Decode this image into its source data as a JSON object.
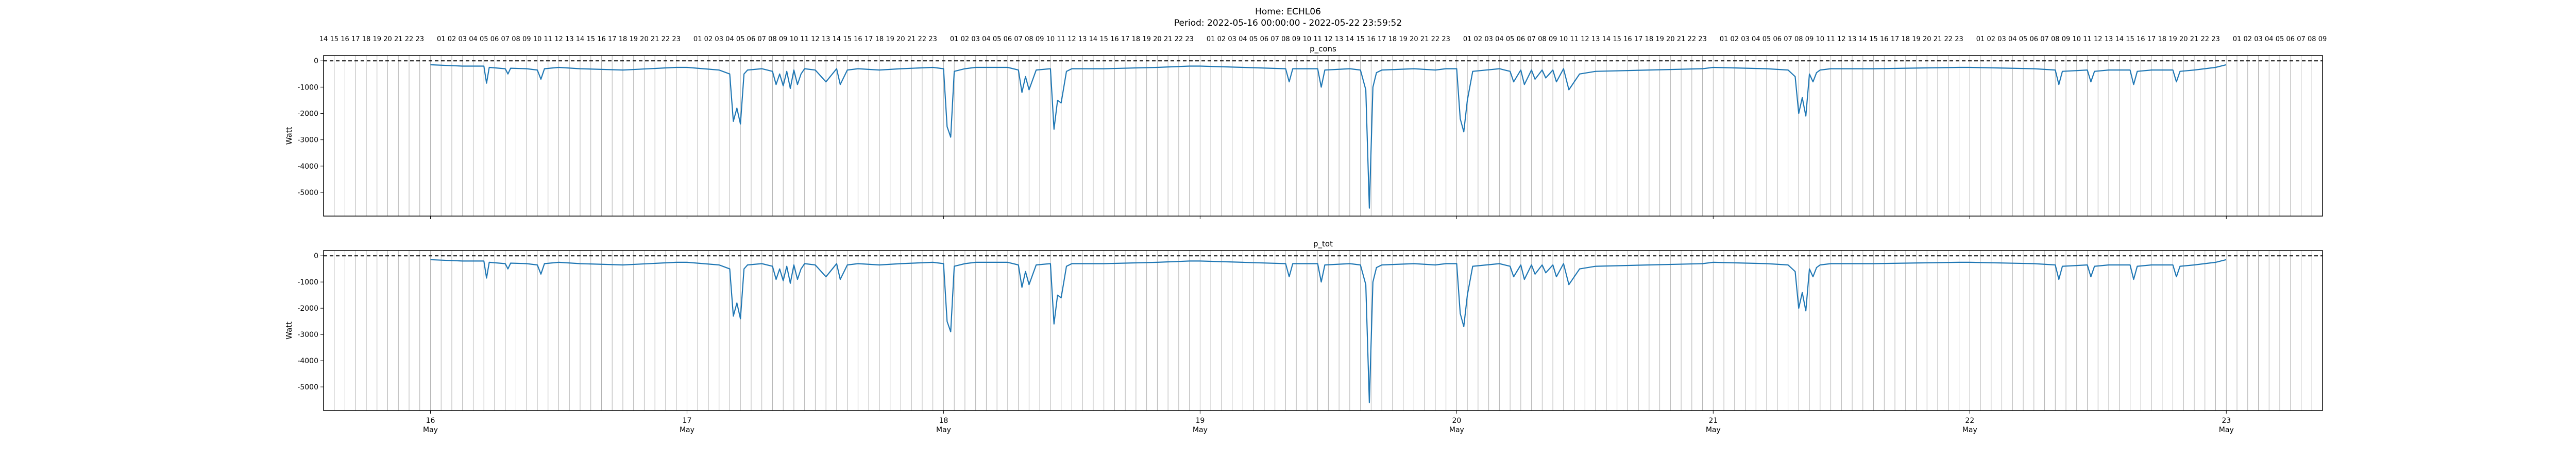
{
  "figure": {
    "title_line1": "Home: ECHL06",
    "title_line2": "Period: 2022-05-16 00:00:00 - 2022-05-22 23:59:52"
  },
  "axes": {
    "x_range": [
      "2022-05-15T14:00",
      "2022-05-23T09:00"
    ],
    "y_range": [
      -5900,
      200
    ],
    "yticks": [
      0,
      -1000,
      -2000,
      -3000,
      -4000,
      -5000
    ],
    "date_labels": [
      "16",
      "17",
      "18",
      "19",
      "20",
      "21",
      "22",
      "23"
    ],
    "month_label": "May",
    "hour_grid": "every hour, vertical grey lines",
    "zero_line": "dashed black at y=0"
  },
  "colors": {
    "line": "#1f77b4",
    "grid": "#b0b0b0",
    "zero": "#000000"
  },
  "chart_data": [
    {
      "type": "line",
      "title": "p_cons",
      "ylabel": "Watt",
      "grid": true,
      "series": [
        {
          "x": [
            "2022-05-16T00:00",
            "2022-05-16T03:00",
            "2022-05-16T05:00",
            "2022-05-16T05:15",
            "2022-05-16T05:30",
            "2022-05-16T07:00",
            "2022-05-16T07:15",
            "2022-05-16T07:30",
            "2022-05-16T09:00",
            "2022-05-16T10:00",
            "2022-05-16T10:20",
            "2022-05-16T10:40",
            "2022-05-16T12:00",
            "2022-05-16T14:00",
            "2022-05-16T18:00",
            "2022-05-16T23:00",
            "2022-05-17T00:00",
            "2022-05-17T03:00",
            "2022-05-17T04:00",
            "2022-05-17T04:20",
            "2022-05-17T04:40",
            "2022-05-17T05:00",
            "2022-05-17T05:20",
            "2022-05-17T05:40",
            "2022-05-17T07:00",
            "2022-05-17T08:00",
            "2022-05-17T08:20",
            "2022-05-17T08:40",
            "2022-05-17T09:00",
            "2022-05-17T09:20",
            "2022-05-17T09:40",
            "2022-05-17T10:00",
            "2022-05-17T10:20",
            "2022-05-17T10:40",
            "2022-05-17T11:00",
            "2022-05-17T12:00",
            "2022-05-17T13:00",
            "2022-05-17T14:00",
            "2022-05-17T14:20",
            "2022-05-17T15:00",
            "2022-05-17T16:00",
            "2022-05-17T18:00",
            "2022-05-17T20:00",
            "2022-05-17T23:00",
            "2022-05-18T00:00",
            "2022-05-18T00:20",
            "2022-05-18T00:40",
            "2022-05-18T01:00",
            "2022-05-18T02:00",
            "2022-05-18T03:00",
            "2022-05-18T06:00",
            "2022-05-18T07:00",
            "2022-05-18T07:20",
            "2022-05-18T07:40",
            "2022-05-18T08:00",
            "2022-05-18T08:40",
            "2022-05-18T10:00",
            "2022-05-18T10:20",
            "2022-05-18T10:40",
            "2022-05-18T11:00",
            "2022-05-18T11:30",
            "2022-05-18T12:00",
            "2022-05-18T15:00",
            "2022-05-18T20:00",
            "2022-05-18T23:00",
            "2022-05-19T00:00",
            "2022-05-19T04:00",
            "2022-05-19T08:00",
            "2022-05-19T08:20",
            "2022-05-19T08:40",
            "2022-05-19T11:00",
            "2022-05-19T11:20",
            "2022-05-19T11:40",
            "2022-05-19T14:00",
            "2022-05-19T15:00",
            "2022-05-19T15:30",
            "2022-05-19T15:50",
            "2022-05-19T16:10",
            "2022-05-19T16:30",
            "2022-05-19T17:00",
            "2022-05-19T20:00",
            "2022-05-19T22:00",
            "2022-05-19T23:00",
            "2022-05-20T00:00",
            "2022-05-20T00:20",
            "2022-05-20T00:40",
            "2022-05-20T01:00",
            "2022-05-20T01:30",
            "2022-05-20T04:00",
            "2022-05-20T05:00",
            "2022-05-20T05:20",
            "2022-05-20T06:00",
            "2022-05-20T06:20",
            "2022-05-20T07:00",
            "2022-05-20T07:20",
            "2022-05-20T08:00",
            "2022-05-20T08:20",
            "2022-05-20T09:00",
            "2022-05-20T09:20",
            "2022-05-20T10:00",
            "2022-05-20T10:30",
            "2022-05-20T11:30",
            "2022-05-20T13:00",
            "2022-05-20T18:00",
            "2022-05-20T23:00",
            "2022-05-21T00:00",
            "2022-05-21T05:00",
            "2022-05-21T07:00",
            "2022-05-21T07:40",
            "2022-05-21T08:00",
            "2022-05-21T08:20",
            "2022-05-21T08:40",
            "2022-05-21T09:00",
            "2022-05-21T09:20",
            "2022-05-21T09:40",
            "2022-05-21T10:00",
            "2022-05-21T11:00",
            "2022-05-21T15:00",
            "2022-05-21T23:00",
            "2022-05-22T00:00",
            "2022-05-22T06:00",
            "2022-05-22T08:00",
            "2022-05-22T08:20",
            "2022-05-22T08:40",
            "2022-05-22T11:00",
            "2022-05-22T11:20",
            "2022-05-22T11:40",
            "2022-05-22T13:00",
            "2022-05-22T15:00",
            "2022-05-22T15:20",
            "2022-05-22T15:40",
            "2022-05-22T17:00",
            "2022-05-22T19:00",
            "2022-05-22T19:20",
            "2022-05-22T19:40",
            "2022-05-22T21:00",
            "2022-05-22T23:00",
            "2022-05-22T23:59"
          ],
          "y": [
            -150,
            -200,
            -200,
            -850,
            -250,
            -300,
            -500,
            -280,
            -300,
            -350,
            -700,
            -300,
            -250,
            -300,
            -350,
            -250,
            -250,
            -350,
            -500,
            -2300,
            -1800,
            -2400,
            -500,
            -350,
            -300,
            -400,
            -900,
            -500,
            -950,
            -400,
            -1050,
            -350,
            -900,
            -500,
            -300,
            -350,
            -800,
            -300,
            -900,
            -350,
            -300,
            -350,
            -300,
            -250,
            -300,
            -2500,
            -2900,
            -400,
            -300,
            -250,
            -250,
            -350,
            -1200,
            -600,
            -1100,
            -350,
            -300,
            -2600,
            -1500,
            -1600,
            -400,
            -300,
            -300,
            -250,
            -200,
            -200,
            -250,
            -300,
            -800,
            -300,
            -300,
            -1000,
            -350,
            -300,
            -350,
            -1100,
            -5600,
            -1000,
            -450,
            -350,
            -300,
            -350,
            -300,
            -300,
            -2200,
            -2700,
            -1500,
            -400,
            -300,
            -400,
            -800,
            -350,
            -900,
            -350,
            -700,
            -350,
            -650,
            -350,
            -800,
            -300,
            -1100,
            -500,
            -400,
            -350,
            -300,
            -250,
            -300,
            -350,
            -600,
            -2000,
            -1400,
            -2100,
            -500,
            -800,
            -450,
            -350,
            -300,
            -300,
            -250,
            -250,
            -300,
            -350,
            -900,
            -400,
            -350,
            -800,
            -400,
            -350,
            -350,
            -900,
            -400,
            -350,
            -350,
            -800,
            -400,
            -350,
            -250,
            -150
          ]
        }
      ]
    },
    {
      "type": "line",
      "title": "p_tot",
      "ylabel": "Watt",
      "grid": true,
      "series": [
        {
          "x": [
            "2022-05-16T00:00",
            "2022-05-16T03:00",
            "2022-05-16T05:00",
            "2022-05-16T05:15",
            "2022-05-16T05:30",
            "2022-05-16T07:00",
            "2022-05-16T07:15",
            "2022-05-16T07:30",
            "2022-05-16T09:00",
            "2022-05-16T10:00",
            "2022-05-16T10:20",
            "2022-05-16T10:40",
            "2022-05-16T12:00",
            "2022-05-16T14:00",
            "2022-05-16T18:00",
            "2022-05-16T23:00",
            "2022-05-17T00:00",
            "2022-05-17T03:00",
            "2022-05-17T04:00",
            "2022-05-17T04:20",
            "2022-05-17T04:40",
            "2022-05-17T05:00",
            "2022-05-17T05:20",
            "2022-05-17T05:40",
            "2022-05-17T07:00",
            "2022-05-17T08:00",
            "2022-05-17T08:20",
            "2022-05-17T08:40",
            "2022-05-17T09:00",
            "2022-05-17T09:20",
            "2022-05-17T09:40",
            "2022-05-17T10:00",
            "2022-05-17T10:20",
            "2022-05-17T10:40",
            "2022-05-17T11:00",
            "2022-05-17T12:00",
            "2022-05-17T13:00",
            "2022-05-17T14:00",
            "2022-05-17T14:20",
            "2022-05-17T15:00",
            "2022-05-17T16:00",
            "2022-05-17T18:00",
            "2022-05-17T20:00",
            "2022-05-17T23:00",
            "2022-05-18T00:00",
            "2022-05-18T00:20",
            "2022-05-18T00:40",
            "2022-05-18T01:00",
            "2022-05-18T02:00",
            "2022-05-18T03:00",
            "2022-05-18T06:00",
            "2022-05-18T07:00",
            "2022-05-18T07:20",
            "2022-05-18T07:40",
            "2022-05-18T08:00",
            "2022-05-18T08:40",
            "2022-05-18T10:00",
            "2022-05-18T10:20",
            "2022-05-18T10:40",
            "2022-05-18T11:00",
            "2022-05-18T11:30",
            "2022-05-18T12:00",
            "2022-05-18T15:00",
            "2022-05-18T20:00",
            "2022-05-18T23:00",
            "2022-05-19T00:00",
            "2022-05-19T04:00",
            "2022-05-19T08:00",
            "2022-05-19T08:20",
            "2022-05-19T08:40",
            "2022-05-19T11:00",
            "2022-05-19T11:20",
            "2022-05-19T11:40",
            "2022-05-19T14:00",
            "2022-05-19T15:00",
            "2022-05-19T15:30",
            "2022-05-19T15:50",
            "2022-05-19T16:10",
            "2022-05-19T16:30",
            "2022-05-19T17:00",
            "2022-05-19T20:00",
            "2022-05-19T22:00",
            "2022-05-19T23:00",
            "2022-05-20T00:00",
            "2022-05-20T00:20",
            "2022-05-20T00:40",
            "2022-05-20T01:00",
            "2022-05-20T01:30",
            "2022-05-20T04:00",
            "2022-05-20T05:00",
            "2022-05-20T05:20",
            "2022-05-20T06:00",
            "2022-05-20T06:20",
            "2022-05-20T07:00",
            "2022-05-20T07:20",
            "2022-05-20T08:00",
            "2022-05-20T08:20",
            "2022-05-20T09:00",
            "2022-05-20T09:20",
            "2022-05-20T10:00",
            "2022-05-20T10:30",
            "2022-05-20T11:30",
            "2022-05-20T13:00",
            "2022-05-20T18:00",
            "2022-05-20T23:00",
            "2022-05-21T00:00",
            "2022-05-21T05:00",
            "2022-05-21T07:00",
            "2022-05-21T07:40",
            "2022-05-21T08:00",
            "2022-05-21T08:20",
            "2022-05-21T08:40",
            "2022-05-21T09:00",
            "2022-05-21T09:20",
            "2022-05-21T09:40",
            "2022-05-21T10:00",
            "2022-05-21T11:00",
            "2022-05-21T15:00",
            "2022-05-21T23:00",
            "2022-05-22T00:00",
            "2022-05-22T06:00",
            "2022-05-22T08:00",
            "2022-05-22T08:20",
            "2022-05-22T08:40",
            "2022-05-22T11:00",
            "2022-05-22T11:20",
            "2022-05-22T11:40",
            "2022-05-22T13:00",
            "2022-05-22T15:00",
            "2022-05-22T15:20",
            "2022-05-22T15:40",
            "2022-05-22T17:00",
            "2022-05-22T19:00",
            "2022-05-22T19:20",
            "2022-05-22T19:40",
            "2022-05-22T21:00",
            "2022-05-22T23:00",
            "2022-05-22T23:59"
          ],
          "y": [
            -150,
            -200,
            -200,
            -850,
            -250,
            -300,
            -500,
            -280,
            -300,
            -350,
            -700,
            -300,
            -250,
            -300,
            -350,
            -250,
            -250,
            -350,
            -500,
            -2300,
            -1800,
            -2400,
            -500,
            -350,
            -300,
            -400,
            -900,
            -500,
            -950,
            -400,
            -1050,
            -350,
            -900,
            -500,
            -300,
            -350,
            -800,
            -300,
            -900,
            -350,
            -300,
            -350,
            -300,
            -250,
            -300,
            -2500,
            -2900,
            -400,
            -300,
            -250,
            -250,
            -350,
            -1200,
            -600,
            -1100,
            -350,
            -300,
            -2600,
            -1500,
            -1600,
            -400,
            -300,
            -300,
            -250,
            -200,
            -200,
            -250,
            -300,
            -800,
            -300,
            -300,
            -1000,
            -350,
            -300,
            -350,
            -1100,
            -5600,
            -1000,
            -450,
            -350,
            -300,
            -350,
            -300,
            -300,
            -2200,
            -2700,
            -1500,
            -400,
            -300,
            -400,
            -800,
            -350,
            -900,
            -350,
            -700,
            -350,
            -650,
            -350,
            -800,
            -300,
            -1100,
            -500,
            -400,
            -350,
            -300,
            -250,
            -300,
            -350,
            -600,
            -2000,
            -1400,
            -2100,
            -500,
            -800,
            -450,
            -350,
            -300,
            -300,
            -250,
            -250,
            -300,
            -350,
            -900,
            -400,
            -350,
            -800,
            -400,
            -350,
            -350,
            -900,
            -400,
            -350,
            -350,
            -800,
            -400,
            -350,
            -250,
            -150
          ]
        }
      ]
    }
  ]
}
